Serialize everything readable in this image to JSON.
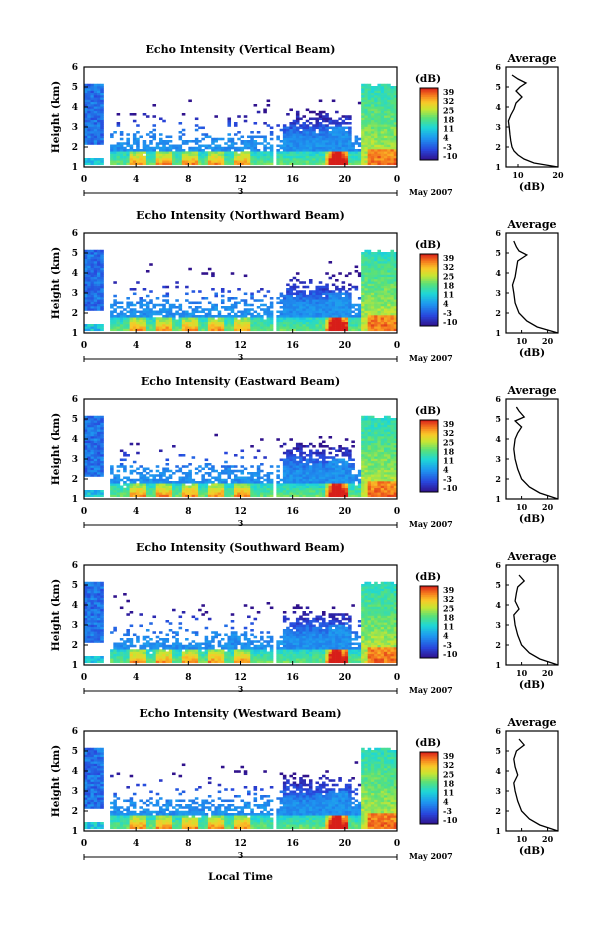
{
  "figure": {
    "xlabel": "Local Time",
    "ylabel": "Height (km)",
    "date_label": "May 2007",
    "colorbar_label": "(dB)",
    "colorbar_ticks": [
      "39",
      "32",
      "25",
      "18",
      "11",
      "4",
      "-3",
      "-10"
    ],
    "x_ticks": [
      "0",
      "4",
      "8",
      "12",
      "16",
      "20",
      "0"
    ],
    "day_label": "3",
    "y_ticks": [
      "1",
      "2",
      "3",
      "4",
      "5",
      "6"
    ]
  },
  "chart_data": [
    {
      "type": "heatmap",
      "title": "Echo Intensity (Vertical Beam)",
      "xlim": [
        0,
        24
      ],
      "ylim": [
        1,
        6
      ],
      "zlim": [
        -10,
        39
      ],
      "average_profile": {
        "title": "Average",
        "xlabel": "(dB)",
        "x_ticks": [
          "10",
          "20"
        ],
        "xlim": [
          7,
          20
        ],
        "height": [
          1.0,
          1.2,
          1.4,
          1.6,
          1.8,
          2.0,
          2.3,
          2.6,
          3.0,
          3.3,
          3.6,
          3.9,
          4.2,
          4.5,
          4.8,
          5.0,
          5.2,
          5.4,
          5.6
        ],
        "db": [
          20,
          14,
          11.5,
          10,
          9,
          8.5,
          8.2,
          8,
          7.8,
          7.6,
          8.2,
          9,
          9.5,
          11,
          9.5,
          10.5,
          12,
          10,
          8.5
        ]
      }
    },
    {
      "type": "heatmap",
      "title": "Echo Intensity (Northward Beam)",
      "xlim": [
        0,
        24
      ],
      "ylim": [
        1,
        6
      ],
      "zlim": [
        -10,
        39
      ],
      "average_profile": {
        "title": "Average",
        "xlabel": "(dB)",
        "x_ticks": [
          "10",
          "20"
        ],
        "xlim": [
          4,
          24
        ],
        "height": [
          1.0,
          1.3,
          1.6,
          2.0,
          2.5,
          3.0,
          3.4,
          3.8,
          4.2,
          4.6,
          4.9,
          5.1,
          5.3,
          5.6
        ],
        "db": [
          24,
          16,
          12,
          9,
          7.5,
          7,
          6.5,
          7.5,
          8,
          8.5,
          12,
          9,
          8,
          7
        ]
      }
    },
    {
      "type": "heatmap",
      "title": "Echo Intensity (Eastward Beam)",
      "xlim": [
        0,
        24
      ],
      "ylim": [
        1,
        6
      ],
      "zlim": [
        -10,
        39
      ],
      "average_profile": {
        "title": "Average",
        "xlabel": "(dB)",
        "x_ticks": [
          "10",
          "20"
        ],
        "xlim": [
          4,
          24
        ],
        "height": [
          1.0,
          1.3,
          1.6,
          2.0,
          2.5,
          3.0,
          3.5,
          4.0,
          4.3,
          4.6,
          4.9,
          5.1,
          5.4,
          5.6
        ],
        "db": [
          24,
          17,
          13,
          10,
          8.5,
          7.5,
          7,
          7.5,
          8.5,
          10,
          7.5,
          11,
          9,
          8
        ]
      }
    },
    {
      "type": "heatmap",
      "title": "Echo Intensity (Southward Beam)",
      "xlim": [
        0,
        24
      ],
      "ylim": [
        1,
        6
      ],
      "zlim": [
        -10,
        39
      ],
      "average_profile": {
        "title": "Average",
        "xlabel": "(dB)",
        "x_ticks": [
          "10",
          "20"
        ],
        "xlim": [
          4,
          24
        ],
        "height": [
          1.0,
          1.3,
          1.6,
          2.0,
          2.5,
          3.0,
          3.5,
          3.8,
          4.2,
          4.6,
          4.9,
          5.2,
          5.5
        ],
        "db": [
          24,
          17,
          13,
          10,
          8.5,
          7.5,
          7,
          9,
          7.5,
          8,
          8.5,
          11,
          9
        ]
      }
    },
    {
      "type": "heatmap",
      "title": "Echo Intensity (Westward Beam)",
      "xlim": [
        0,
        24
      ],
      "ylim": [
        1,
        6
      ],
      "zlim": [
        -10,
        39
      ],
      "average_profile": {
        "title": "Average",
        "xlabel": "(dB)",
        "x_ticks": [
          "10",
          "20"
        ],
        "xlim": [
          4,
          24
        ],
        "height": [
          1.0,
          1.3,
          1.6,
          2.0,
          2.5,
          3.0,
          3.4,
          3.8,
          4.2,
          4.6,
          5.0,
          5.3,
          5.6
        ],
        "db": [
          24,
          17,
          13,
          10,
          8.5,
          7.5,
          7,
          8.5,
          7.5,
          7,
          8,
          11,
          9
        ]
      }
    }
  ]
}
